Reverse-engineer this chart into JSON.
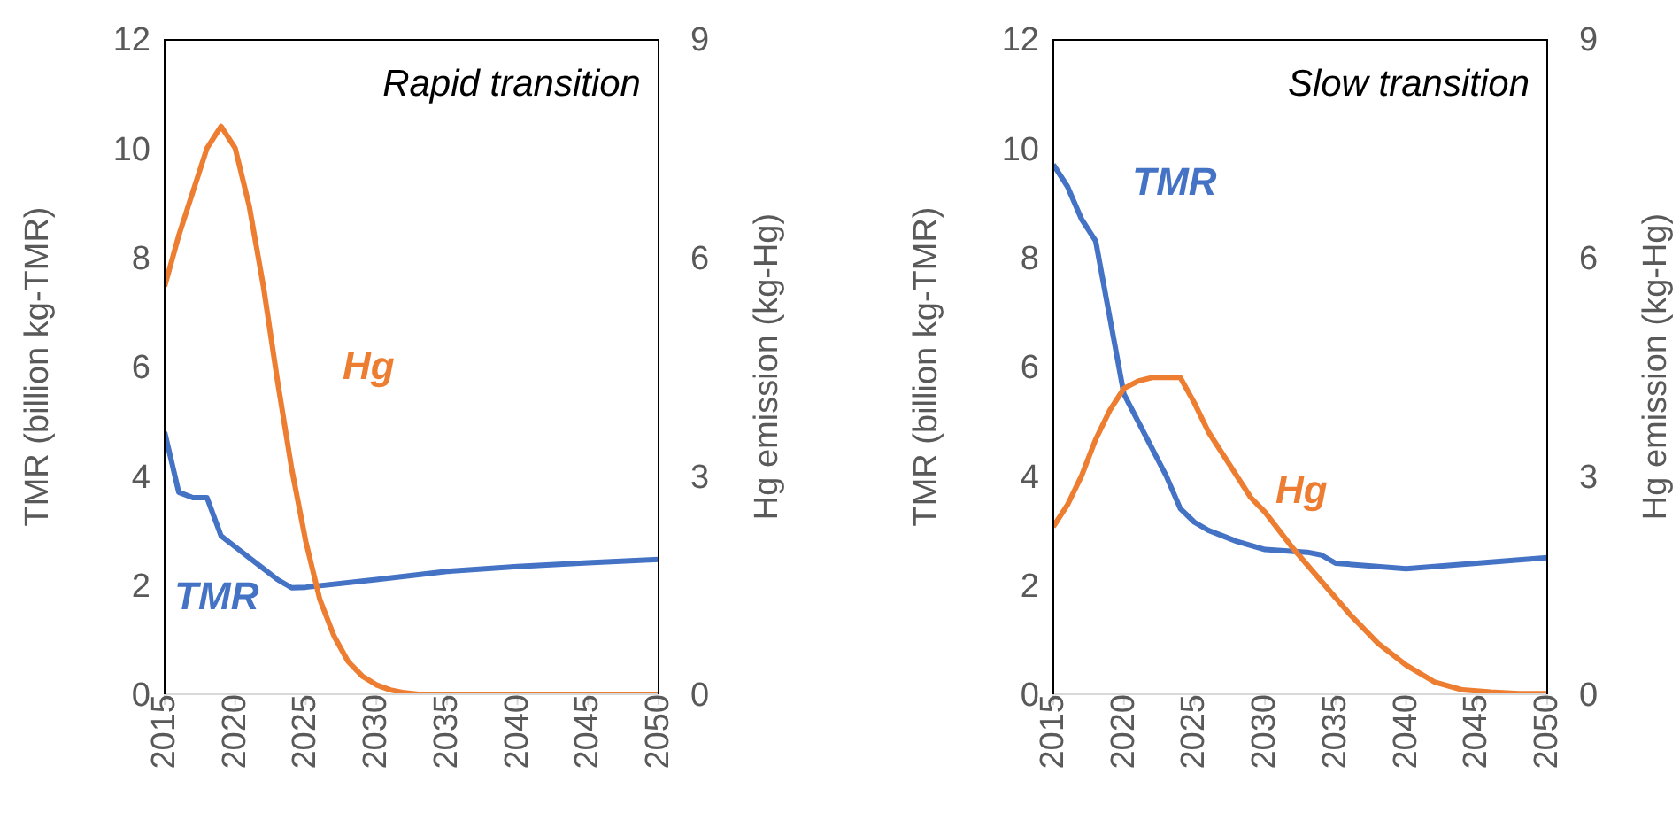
{
  "chart_data": [
    {
      "type": "line",
      "title": "Rapid transition",
      "ylabel": "TMR (billion kg-TMR)",
      "y2label": "Hg emission (kg-Hg)",
      "xlim": [
        2015,
        2050
      ],
      "xticks": [
        2015,
        2020,
        2025,
        2030,
        2035,
        2040,
        2045,
        2050
      ],
      "ylim": [
        0,
        12
      ],
      "yticks": [
        0,
        2,
        4,
        6,
        8,
        10,
        12
      ],
      "y2lim": [
        0,
        9
      ],
      "y2ticks": [
        0,
        3,
        6,
        9
      ],
      "marker": "none",
      "line_style": "solid",
      "series": [
        {
          "name": "TMR",
          "color": "#4472c4",
          "x": [
            2015,
            2016,
            2017,
            2018,
            2019,
            2020,
            2021,
            2022,
            2023,
            2024,
            2025,
            2030,
            2035,
            2040,
            2045,
            2050
          ],
          "values": [
            4.8,
            3.7,
            3.6,
            3.6,
            2.9,
            2.7,
            2.5,
            2.3,
            2.1,
            1.95,
            1.96,
            2.1,
            2.25,
            2.34,
            2.41,
            2.47
          ]
        },
        {
          "name": "Hg",
          "color": "#ed7d31",
          "axis": "y2",
          "x": [
            2015,
            2016,
            2017,
            2018,
            2019,
            2020,
            2021,
            2022,
            2023,
            2024,
            2025,
            2026,
            2027,
            2028,
            2029,
            2030,
            2031,
            2032,
            2033,
            2040,
            2050
          ],
          "values": [
            5.6,
            6.3,
            6.9,
            7.5,
            7.8,
            7.5,
            6.7,
            5.6,
            4.3,
            3.1,
            2.1,
            1.3,
            0.8,
            0.45,
            0.25,
            0.13,
            0.06,
            0.02,
            0,
            0,
            0
          ]
        }
      ]
    },
    {
      "type": "line",
      "title": "Slow transition",
      "ylabel": "TMR (billion kg-TMR)",
      "y2label": "Hg emission (kg-Hg)",
      "xlim": [
        2015,
        2050
      ],
      "xticks": [
        2015,
        2020,
        2025,
        2030,
        2035,
        2040,
        2045,
        2050
      ],
      "ylim": [
        0,
        12
      ],
      "yticks": [
        0,
        2,
        4,
        6,
        8,
        10,
        12
      ],
      "y2lim": [
        0,
        9
      ],
      "y2ticks": [
        0,
        3,
        6,
        9
      ],
      "marker": "none",
      "line_style": "solid",
      "series": [
        {
          "name": "TMR",
          "color": "#4472c4",
          "x": [
            2015,
            2016,
            2017,
            2018,
            2019,
            2020,
            2021,
            2022,
            2023,
            2024,
            2025,
            2026,
            2027,
            2028,
            2030,
            2033,
            2034,
            2035,
            2040,
            2045,
            2050
          ],
          "values": [
            9.7,
            9.3,
            8.7,
            8.3,
            6.9,
            5.5,
            5.0,
            4.5,
            4.0,
            3.4,
            3.15,
            3.0,
            2.9,
            2.8,
            2.65,
            2.6,
            2.55,
            2.4,
            2.3,
            2.4,
            2.5
          ]
        },
        {
          "name": "Hg",
          "color": "#ed7d31",
          "axis": "y2",
          "x": [
            2015,
            2016,
            2017,
            2018,
            2019,
            2020,
            2021,
            2022,
            2023,
            2024,
            2025,
            2026,
            2027,
            2028,
            2029,
            2030,
            2032,
            2034,
            2036,
            2038,
            2040,
            2042,
            2044,
            2046,
            2048,
            2050
          ],
          "values": [
            2.3,
            2.6,
            3.0,
            3.5,
            3.9,
            4.2,
            4.3,
            4.35,
            4.35,
            4.35,
            4.0,
            3.6,
            3.3,
            3.0,
            2.7,
            2.5,
            2.0,
            1.55,
            1.1,
            0.7,
            0.4,
            0.17,
            0.06,
            0.03,
            0.01,
            0.01
          ]
        }
      ]
    }
  ]
}
